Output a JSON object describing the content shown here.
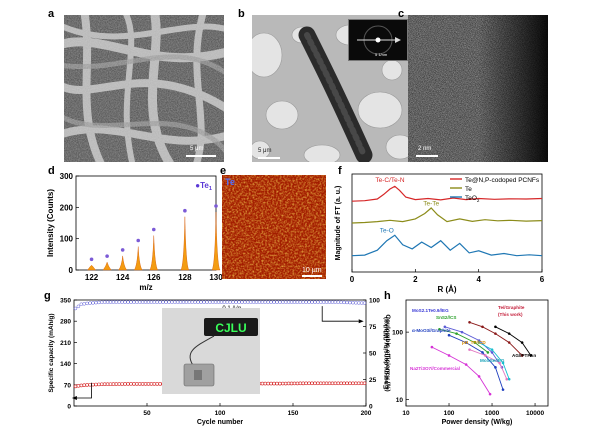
{
  "panel_labels": [
    "a",
    "b",
    "c",
    "d",
    "e",
    "f",
    "g",
    "h"
  ],
  "scale_bars": {
    "a": "5 μm",
    "b_main": "5 μm",
    "b_inset": "5 1/nm",
    "c": "2 nm",
    "e": "10 μm"
  },
  "panel_e": {
    "element_label": "Te"
  },
  "chart_data": [
    {
      "panel": "d",
      "type": "bar",
      "xlabel": "m/z",
      "ylabel": "Intensity (Counts)",
      "xlim": [
        121,
        130
      ],
      "ylim": [
        0,
        300
      ],
      "xticks": [
        "122",
        "124",
        "126",
        "128",
        "130"
      ],
      "yticks": [
        "0",
        "100",
        "200",
        "300"
      ],
      "legend": "●Te",
      "legend_sub": "1",
      "peaks": [
        {
          "x": 122,
          "y": 15
        },
        {
          "x": 123,
          "y": 25
        },
        {
          "x": 124,
          "y": 45
        },
        {
          "x": 125,
          "y": 75
        },
        {
          "x": 126,
          "y": 110
        },
        {
          "x": 128,
          "y": 170
        },
        {
          "x": 130,
          "y": 185
        }
      ]
    },
    {
      "panel": "f",
      "type": "line",
      "xlabel": "R (Å)",
      "ylabel": "Magnitude of FT (a. u.)",
      "xlim": [
        0,
        6
      ],
      "xticks": [
        "0",
        "2",
        "4",
        "6"
      ],
      "annotations": [
        "Te-C/Te-N",
        "Te-Te",
        "Te-O"
      ],
      "series": [
        {
          "name": "Te@N,P-codoped PCNFs",
          "color": "#d62728",
          "x": [
            0,
            0.4,
            0.8,
            1.0,
            1.2,
            1.35,
            1.5,
            1.7,
            2.0,
            2.4,
            2.8,
            3.2,
            3.6,
            4.0,
            4.5,
            5.0,
            5.5,
            6.0
          ],
          "y": [
            2.6,
            2.62,
            2.68,
            2.85,
            3.05,
            3.15,
            3.0,
            2.75,
            2.66,
            2.7,
            2.65,
            2.72,
            2.66,
            2.7,
            2.67,
            2.69,
            2.68,
            2.7
          ]
        },
        {
          "name": "Te",
          "color": "#8c8c1a",
          "x": [
            0,
            0.4,
            0.8,
            1.2,
            1.6,
            2.0,
            2.3,
            2.5,
            2.7,
            3.0,
            3.4,
            3.8,
            4.2,
            4.6,
            5.0,
            5.5,
            6.0
          ],
          "y": [
            1.8,
            1.82,
            1.85,
            1.9,
            1.85,
            1.95,
            2.15,
            2.35,
            2.1,
            1.85,
            1.95,
            1.86,
            1.92,
            1.88,
            1.9,
            1.87,
            1.89
          ]
        },
        {
          "name": "TeO",
          "name_sub": "2",
          "color": "#1f77b4",
          "x": [
            0,
            0.4,
            0.8,
            1.1,
            1.35,
            1.6,
            1.9,
            2.2,
            2.5,
            2.8,
            3.1,
            3.4,
            3.7,
            4.0,
            4.4,
            4.8,
            5.2,
            5.6,
            6.0
          ],
          "y": [
            0.6,
            0.62,
            0.8,
            1.15,
            1.35,
            1.0,
            0.85,
            1.1,
            0.9,
            1.15,
            0.8,
            1.05,
            0.7,
            0.78,
            0.62,
            0.68,
            0.6,
            0.63,
            0.6
          ]
        }
      ]
    },
    {
      "panel": "g",
      "type": "scatter",
      "xlabel": "Cycle number",
      "ylabel": "Specific capacity (mAh/g)",
      "ylabel_right": "Coulombic efficiency (%)",
      "xlim": [
        0,
        200
      ],
      "ylim": [
        0,
        350
      ],
      "y2lim": [
        0,
        100
      ],
      "xticks": [
        "50",
        "100",
        "150",
        "200"
      ],
      "yticks": [
        "0",
        "70",
        "140",
        "210",
        "280",
        "350"
      ],
      "y2ticks": [
        "0",
        "25",
        "50",
        "75",
        "100"
      ],
      "rate_label": "0.1 A/g",
      "led_text": "CJLU",
      "series": [
        {
          "name": "Coulombic efficiency",
          "color": "#5b5bd6",
          "x": [
            1,
            5,
            10,
            20,
            40,
            60,
            80,
            100,
            120,
            140,
            160,
            180,
            200
          ],
          "y": [
            92,
            96,
            97,
            98,
            98,
            98,
            98,
            98,
            98,
            98,
            98,
            98,
            97
          ]
        },
        {
          "name": "Specific capacity",
          "color": "#d62728",
          "x": [
            1,
            5,
            10,
            20,
            40,
            60,
            80,
            100,
            120,
            140,
            160,
            180,
            200
          ],
          "y": [
            65,
            68,
            70,
            72,
            73,
            73,
            74,
            74,
            74,
            74,
            75,
            75,
            75
          ]
        }
      ]
    },
    {
      "panel": "h",
      "type": "line",
      "xlabel": "Power density (W/kg)",
      "ylabel": "Energy density (Wh/kg)",
      "xscale": "log",
      "yscale": "log",
      "xlim": [
        10,
        20000
      ],
      "ylim": [
        8,
        300
      ],
      "xticks": [
        "10",
        "100",
        "1000",
        "10000"
      ],
      "yticks": [
        "10",
        "100"
      ],
      "series": [
        {
          "name": "Te//Graphite (This work)",
          "color": "#8b1a1a",
          "x": [
            300,
            600,
            1200,
            2500,
            5000
          ],
          "y": [
            140,
            120,
            95,
            70,
            45
          ]
        },
        {
          "name": "AG//PTPAn",
          "color": "#000000",
          "x": [
            1200,
            2500,
            5000,
            8000
          ],
          "y": [
            120,
            95,
            70,
            45
          ]
        },
        {
          "name": "MoS2.1Te0.9//EG",
          "color": "#5b5bd6",
          "x": [
            80,
            200,
            500,
            1000,
            1700
          ],
          "y": [
            120,
            100,
            75,
            50,
            30
          ]
        },
        {
          "name": "SnS2//CS",
          "color": "#2ca02c",
          "x": [
            60,
            150,
            400,
            800
          ],
          "y": [
            110,
            95,
            70,
            50
          ]
        },
        {
          "name": "α-MoO3//Graphite",
          "color": "#1f3fbf",
          "x": [
            100,
            250,
            600,
            1200,
            1800
          ],
          "y": [
            90,
            70,
            50,
            30,
            14
          ]
        },
        {
          "name": "pH_TP//CD",
          "color": "#e377c2",
          "x": [
            300,
            700,
            1500,
            2200
          ],
          "y": [
            55,
            45,
            35,
            20
          ]
        },
        {
          "name": "MoSSe//EG",
          "color": "#17becf",
          "x": [
            500,
            1000,
            1800,
            2500
          ],
          "y": [
            70,
            55,
            35,
            20
          ]
        },
        {
          "name": "Na2Ti3O7//Commercial",
          "color": "#d631d6",
          "x": [
            40,
            100,
            250,
            500,
            900
          ],
          "y": [
            60,
            45,
            33,
            22,
            12
          ]
        }
      ],
      "legend_labels": [
        {
          "text": "MoS2.1Te0.9//EG",
          "color": "#3a3ad6"
        },
        {
          "text": "SnS2//CS",
          "color": "#2ca02c"
        },
        {
          "text": "Te//Graphite",
          "color": "#c41e3a"
        },
        {
          "text": "(This work)",
          "color": "#c41e3a"
        },
        {
          "text": "α-MoO3//Graphite",
          "color": "#1f3fbf"
        },
        {
          "text": "pH_TP//CD",
          "color": "#d98c00"
        },
        {
          "text": "AG//PTPAn",
          "color": "#000000"
        },
        {
          "text": "MoSSe//EG",
          "color": "#17a2b8"
        },
        {
          "text": "Na2Ti3O7//Commercial",
          "color": "#d631d6"
        }
      ]
    }
  ]
}
